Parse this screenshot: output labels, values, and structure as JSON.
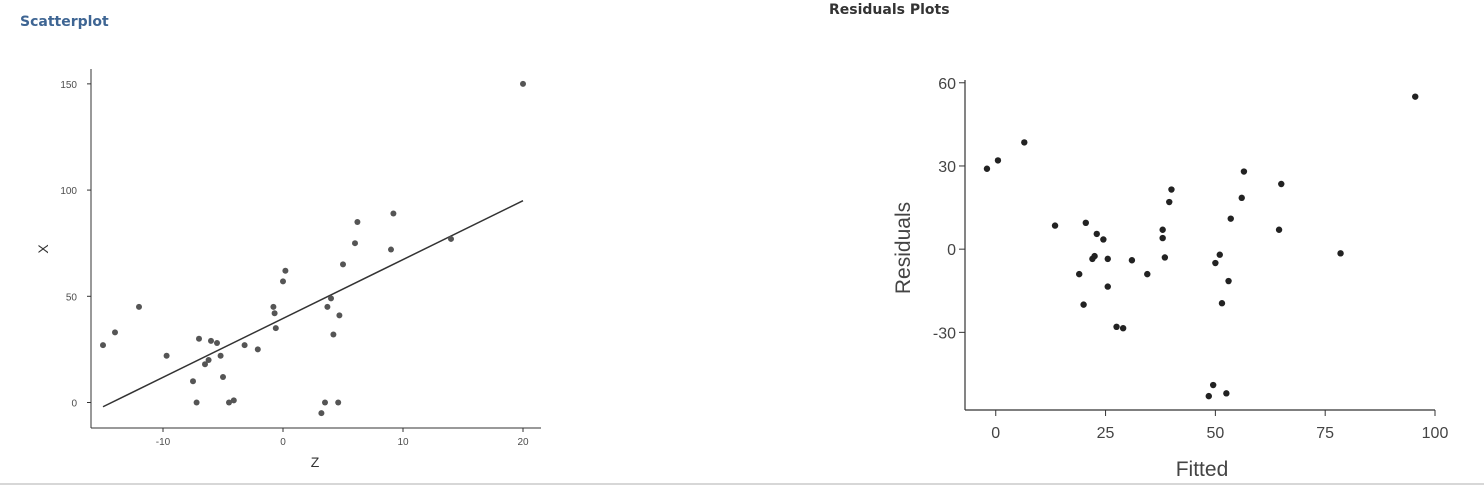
{
  "headings": {
    "scatter": "Scatterplot",
    "residuals": "Residuals Plots"
  },
  "chart_data": [
    {
      "type": "scatter",
      "title": "",
      "xlabel": "Z",
      "ylabel": "X",
      "xlim": [
        -16,
        21.5
      ],
      "ylim": [
        -12,
        157
      ],
      "xticks": [
        -10,
        0,
        10,
        20
      ],
      "yticks": [
        0,
        50,
        100,
        150
      ],
      "grid": false,
      "points": [
        [
          -15,
          27
        ],
        [
          -14,
          33
        ],
        [
          -12,
          45
        ],
        [
          -9.7,
          22
        ],
        [
          -7.5,
          10
        ],
        [
          -7.2,
          0
        ],
        [
          -7,
          30
        ],
        [
          -6.5,
          18
        ],
        [
          -6.2,
          20
        ],
        [
          -6,
          29
        ],
        [
          -5.5,
          28
        ],
        [
          -5.2,
          22
        ],
        [
          -5,
          12
        ],
        [
          -4.5,
          0
        ],
        [
          -4.1,
          1
        ],
        [
          -3.2,
          27
        ],
        [
          -2.1,
          25
        ],
        [
          -0.8,
          45
        ],
        [
          -0.7,
          42
        ],
        [
          -0.6,
          35
        ],
        [
          0,
          57
        ],
        [
          0.2,
          62
        ],
        [
          3.2,
          -5
        ],
        [
          3.5,
          0
        ],
        [
          3.7,
          45
        ],
        [
          4,
          49
        ],
        [
          4.2,
          32
        ],
        [
          4.6,
          0
        ],
        [
          4.7,
          41
        ],
        [
          5,
          65
        ],
        [
          6,
          75
        ],
        [
          6.2,
          85
        ],
        [
          9,
          72
        ],
        [
          9.2,
          89
        ],
        [
          14,
          77
        ],
        [
          20,
          150
        ]
      ],
      "fit_line": [
        [
          -15,
          -2
        ],
        [
          20,
          95
        ]
      ]
    },
    {
      "type": "scatter",
      "title": "",
      "xlabel": "Fitted",
      "ylabel": "Residuals",
      "xlim": [
        -7,
        100
      ],
      "ylim": [
        -58,
        61
      ],
      "xticks": [
        0,
        25,
        50,
        75,
        100
      ],
      "yticks": [
        -30,
        0,
        30,
        60
      ],
      "grid": false,
      "points": [
        [
          -2,
          29
        ],
        [
          0.5,
          32
        ],
        [
          6.5,
          38.5
        ],
        [
          13.5,
          8.5
        ],
        [
          19,
          -9
        ],
        [
          20,
          -20
        ],
        [
          20.5,
          9.5
        ],
        [
          22,
          -3.5
        ],
        [
          22.5,
          -2.5
        ],
        [
          23,
          5.5
        ],
        [
          24.5,
          3.5
        ],
        [
          25.5,
          -3.5
        ],
        [
          25.5,
          -13.5
        ],
        [
          27.5,
          -28
        ],
        [
          29,
          -28.5
        ],
        [
          31,
          -4
        ],
        [
          34.5,
          -9
        ],
        [
          38,
          7
        ],
        [
          38,
          4
        ],
        [
          38.5,
          -3
        ],
        [
          39.5,
          17
        ],
        [
          40,
          21.5
        ],
        [
          48.5,
          -53
        ],
        [
          49.5,
          -49
        ],
        [
          50,
          -5
        ],
        [
          51,
          -2
        ],
        [
          51.5,
          -19.5
        ],
        [
          52.5,
          -52
        ],
        [
          53,
          -11.5
        ],
        [
          53.5,
          11
        ],
        [
          56,
          18.5
        ],
        [
          56.5,
          28
        ],
        [
          64.5,
          7
        ],
        [
          65,
          23.5
        ],
        [
          78.5,
          -1.5
        ],
        [
          95.5,
          55
        ]
      ]
    }
  ]
}
